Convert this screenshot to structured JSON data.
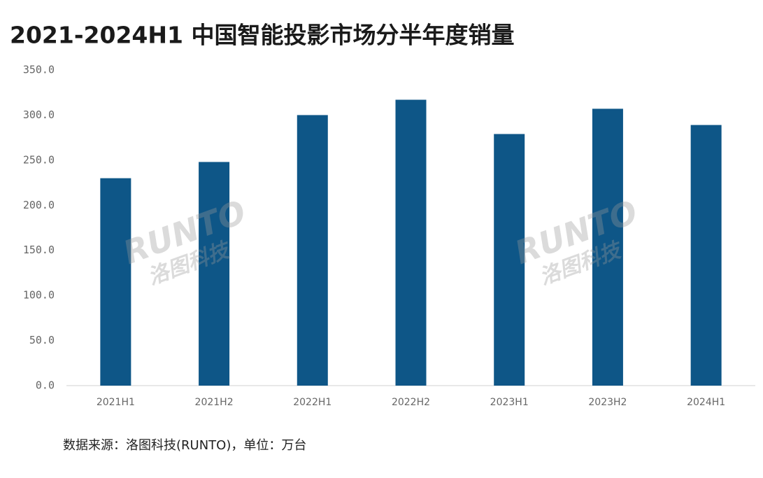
{
  "chart_data": {
    "type": "bar",
    "title": "2021-2024H1 中国智能投影市场分半年度销量",
    "categories": [
      "2021H1",
      "2021H2",
      "2022H1",
      "2022H2",
      "2023H1",
      "2023H2",
      "2024H1"
    ],
    "values": [
      230,
      248,
      300,
      317,
      279,
      307,
      289
    ],
    "color": "#0e5687",
    "ylim": [
      0,
      350
    ],
    "yticks": [
      {
        "value": 0,
        "label": "0.0"
      },
      {
        "value": 50,
        "label": "50.0"
      },
      {
        "value": 100,
        "label": "100.0"
      },
      {
        "value": 150,
        "label": "150.0"
      },
      {
        "value": 200,
        "label": "200.0"
      },
      {
        "value": 250,
        "label": "250.0"
      },
      {
        "value": 300,
        "label": "300.0"
      },
      {
        "value": 350,
        "label": "350.0"
      }
    ],
    "grid": false,
    "source": "数据来源：洛图科技(RUNTO)，单位：万台",
    "watermark": {
      "logo": "RUNTO",
      "name": "洛图科技"
    }
  }
}
